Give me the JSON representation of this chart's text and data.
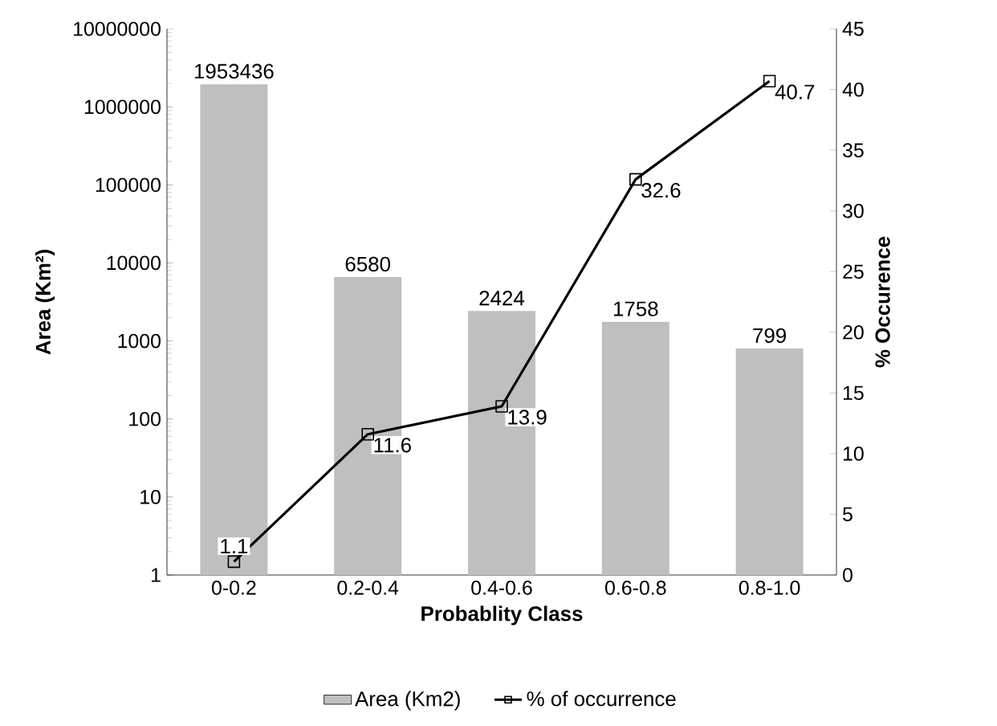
{
  "chart_data": {
    "type": "bar",
    "xlabel": "Probablity Class",
    "ylabel": "Area (Km²)",
    "y2label": "% Occurence",
    "categories": [
      "0-0.2",
      "0.2-0.4",
      "0.4-0.6",
      "0.6-0.8",
      "0.8-1.0"
    ],
    "series": [
      {
        "name": "Area (Km2)",
        "color": "#bfbfbf",
        "values": [
          1953436,
          6580,
          2424,
          1758,
          799
        ]
      },
      {
        "name": "% of occurrence",
        "type": "line",
        "axis": "y2",
        "color": "#000000",
        "marker": "square",
        "values": [
          1.1,
          11.6,
          13.9,
          32.6,
          40.7
        ]
      }
    ],
    "log": "y",
    "ylim": [
      1,
      10000000
    ],
    "yticks": [
      1,
      10,
      100,
      1000,
      10000,
      100000,
      1000000,
      10000000
    ],
    "y2lim": [
      0,
      45
    ],
    "y2ticks": [
      0,
      5,
      10,
      15,
      20,
      25,
      30,
      35,
      40,
      45
    ],
    "data_labels": true,
    "legend": "bottom",
    "grid": false
  }
}
